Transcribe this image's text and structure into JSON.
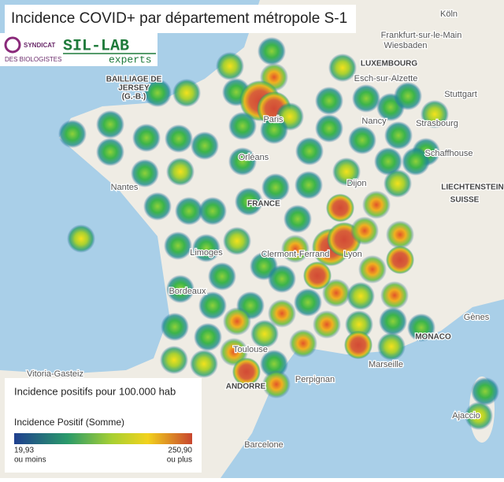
{
  "header": {
    "title": "Incidence COVID+ par département métropole S-1"
  },
  "logos": {
    "syndicat_line1": "SYNDICAT",
    "syndicat_line2": "DES BIOLOGISTES",
    "sil_lab": "SIL-LAB",
    "experts": "experts"
  },
  "legend": {
    "title": "Incidence positifs pour 100.000 hab",
    "subtitle": "Incidence Positif (Somme)",
    "min": "19,93",
    "min_note": "ou moins",
    "max": "250,90",
    "max_note": "ou plus"
  },
  "map_labels": [
    "Köln",
    "Frankfurt-sur-le-Main",
    "Wiesbaden",
    "LUXEMBOURG",
    "Esch-sur-Alzette",
    "Stuttgart",
    "Strasbourg",
    "Nancy",
    "Schaffhouse",
    "LIECHTENSTEIN",
    "SUISSE",
    "BAILLIAGE DE",
    "JERSEY",
    "(G.-B.)",
    "Paris",
    "Orléans",
    "Nantes",
    "FRANCE",
    "Dijon",
    "Limoges",
    "Clermont-Ferrand",
    "Lyon",
    "Bordeaux",
    "Gènes",
    "MONACO",
    "Marseille",
    "Toulouse",
    "Vitoria-Gasteiz",
    "ANDORRE",
    "Perpignan",
    "Barcelone",
    "Ajaccio"
  ]
}
